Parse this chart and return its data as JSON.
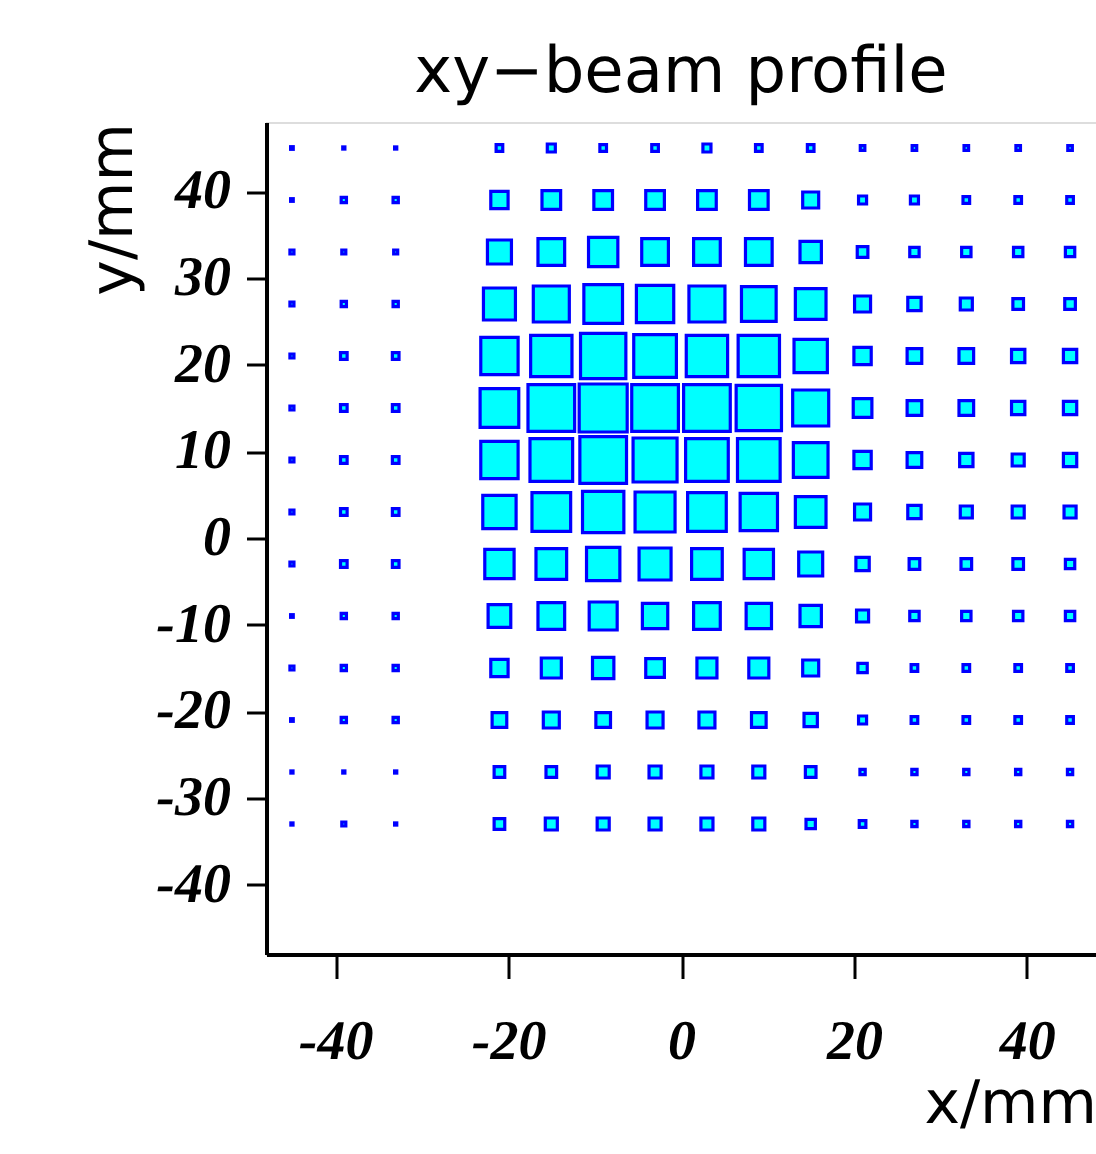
{
  "chart_data": {
    "type": "bubble",
    "title": "xy−beam profile",
    "xlabel": "x/mm",
    "ylabel": "y/mm",
    "x": [
      -45,
      -39,
      -33,
      -21,
      -15,
      -9,
      -3,
      3,
      9,
      15,
      21,
      27,
      33,
      39,
      45
    ],
    "xlim": [
      -48,
      48
    ],
    "ylim": [
      -48,
      48
    ],
    "xticks": [
      -40,
      -20,
      0,
      20,
      40
    ],
    "yticks": [
      -40,
      -30,
      -20,
      -10,
      0,
      10,
      20,
      30,
      40
    ],
    "grid": false,
    "marker": "square",
    "series": [
      {
        "color": "#00ffff",
        "values": [
          45,
          45,
          45,
          45,
          45,
          45,
          45,
          45,
          45,
          45,
          45,
          45,
          45,
          45,
          45
        ],
        "sizes": [
          0.003,
          0.002,
          0.002,
          0.019,
          0.028,
          0.019,
          0.019,
          0.028,
          0.019,
          0.019,
          0.009,
          0.009,
          0.009,
          0.009,
          0.009
        ]
      },
      {
        "color": "#00ffff",
        "values": [
          39,
          39,
          39,
          39,
          39,
          39,
          39,
          39,
          39,
          39,
          39,
          39,
          39,
          39,
          39
        ],
        "sizes": [
          0.003,
          0.012,
          0.012,
          0.13,
          0.151,
          0.151,
          0.151,
          0.151,
          0.151,
          0.111,
          0.028,
          0.028,
          0.019,
          0.019,
          0.019
        ]
      },
      {
        "color": "#00ffff",
        "values": [
          33,
          33,
          33,
          33,
          33,
          33,
          33,
          33,
          33,
          33,
          33,
          33,
          33,
          33,
          33
        ],
        "sizes": [
          0.007,
          0.007,
          0.007,
          0.25,
          0.309,
          0.373,
          0.309,
          0.309,
          0.309,
          0.198,
          0.049,
          0.038,
          0.038,
          0.038,
          0.038
        ]
      },
      {
        "color": "#00ffff",
        "values": [
          27,
          27,
          27,
          27,
          27,
          27,
          27,
          27,
          27,
          27,
          27,
          27,
          27,
          27,
          27
        ],
        "sizes": [
          0.007,
          0.012,
          0.012,
          0.444,
          0.563,
          0.649,
          0.605,
          0.563,
          0.522,
          0.408,
          0.111,
          0.077,
          0.063,
          0.049,
          0.049
        ]
      },
      {
        "color": "#00ffff",
        "values": [
          21,
          21,
          21,
          21,
          21,
          21,
          21,
          21,
          21,
          21,
          21,
          21,
          21,
          21,
          21
        ],
        "sizes": [
          0.007,
          0.019,
          0.019,
          0.605,
          0.742,
          0.892,
          0.79,
          0.742,
          0.742,
          0.482,
          0.13,
          0.093,
          0.093,
          0.077,
          0.077
        ]
      },
      {
        "color": "#00ffff",
        "values": [
          15,
          15,
          15,
          15,
          15,
          15,
          15,
          15,
          15,
          15,
          15,
          15,
          15,
          15,
          15
        ],
        "sizes": [
          0.007,
          0.019,
          0.019,
          0.649,
          0.945,
          1,
          0.945,
          0.945,
          0.892,
          0.563,
          0.151,
          0.093,
          0.093,
          0.077,
          0.077
        ]
      },
      {
        "color": "#00ffff",
        "values": [
          9,
          9,
          9,
          9,
          9,
          9,
          9,
          9,
          9,
          9,
          9,
          9,
          9,
          9,
          9
        ],
        "sizes": [
          0.007,
          0.019,
          0.019,
          0.605,
          0.79,
          0.945,
          0.84,
          0.79,
          0.79,
          0.522,
          0.13,
          0.093,
          0.077,
          0.063,
          0.077
        ]
      },
      {
        "color": "#00ffff",
        "values": [
          3,
          3,
          3,
          3,
          3,
          3,
          3,
          3,
          3,
          3,
          3,
          3,
          3,
          3,
          3
        ],
        "sizes": [
          0.007,
          0.019,
          0.019,
          0.482,
          0.649,
          0.742,
          0.694,
          0.649,
          0.605,
          0.408,
          0.111,
          0.077,
          0.063,
          0.063,
          0.063
        ]
      },
      {
        "color": "#00ffff",
        "values": [
          -3,
          -3,
          -3,
          -3,
          -3,
          -3,
          -3,
          -3,
          -3,
          -3,
          -3,
          -3,
          -3,
          -3,
          -3
        ],
        "sizes": [
          0.007,
          0.019,
          0.019,
          0.373,
          0.408,
          0.482,
          0.444,
          0.408,
          0.373,
          0.25,
          0.077,
          0.049,
          0.049,
          0.049,
          0.038
        ]
      },
      {
        "color": "#00ffff",
        "values": [
          -9,
          -9,
          -9,
          -9,
          -9,
          -9,
          -9,
          -9,
          -9,
          -9,
          -9,
          -9,
          -9,
          -9,
          -9
        ],
        "sizes": [
          0.003,
          0.012,
          0.012,
          0.223,
          0.309,
          0.34,
          0.279,
          0.309,
          0.279,
          0.198,
          0.063,
          0.038,
          0.038,
          0.038,
          0.038
        ]
      },
      {
        "color": "#00ffff",
        "values": [
          -15,
          -15,
          -15,
          -15,
          -15,
          -15,
          -15,
          -15,
          -15,
          -15,
          -15,
          -15,
          -15,
          -15,
          -15
        ],
        "sizes": [
          0.007,
          0.012,
          0.012,
          0.13,
          0.174,
          0.198,
          0.151,
          0.174,
          0.174,
          0.111,
          0.038,
          0.019,
          0.019,
          0.019,
          0.019
        ]
      },
      {
        "color": "#00ffff",
        "values": [
          -21,
          -21,
          -21,
          -21,
          -21,
          -21,
          -21,
          -21,
          -21,
          -21,
          -21,
          -21,
          -21,
          -21,
          -21
        ],
        "sizes": [
          0.003,
          0.012,
          0.012,
          0.093,
          0.111,
          0.093,
          0.111,
          0.111,
          0.093,
          0.077,
          0.028,
          0.019,
          0.019,
          0.019,
          0.019
        ]
      },
      {
        "color": "#00ffff",
        "values": [
          -27,
          -27,
          -27,
          -27,
          -27,
          -27,
          -27,
          -27,
          -27,
          -27,
          -27,
          -27,
          -27,
          -27,
          -27
        ],
        "sizes": [
          0.002,
          0.002,
          0.002,
          0.049,
          0.049,
          0.063,
          0.063,
          0.063,
          0.063,
          0.049,
          0.012,
          0.012,
          0.012,
          0.012,
          0.012
        ]
      },
      {
        "color": "#00ffff",
        "values": [
          -33,
          -33,
          -33,
          -33,
          -33,
          -33,
          -33,
          -33,
          -33,
          -33,
          -33,
          -33,
          -33,
          -33,
          -33
        ],
        "sizes": [
          0.002,
          0.007,
          0.002,
          0.049,
          0.063,
          0.063,
          0.063,
          0.063,
          0.063,
          0.038,
          0.019,
          0.012,
          0.012,
          0.012,
          0.012
        ]
      }
    ]
  }
}
